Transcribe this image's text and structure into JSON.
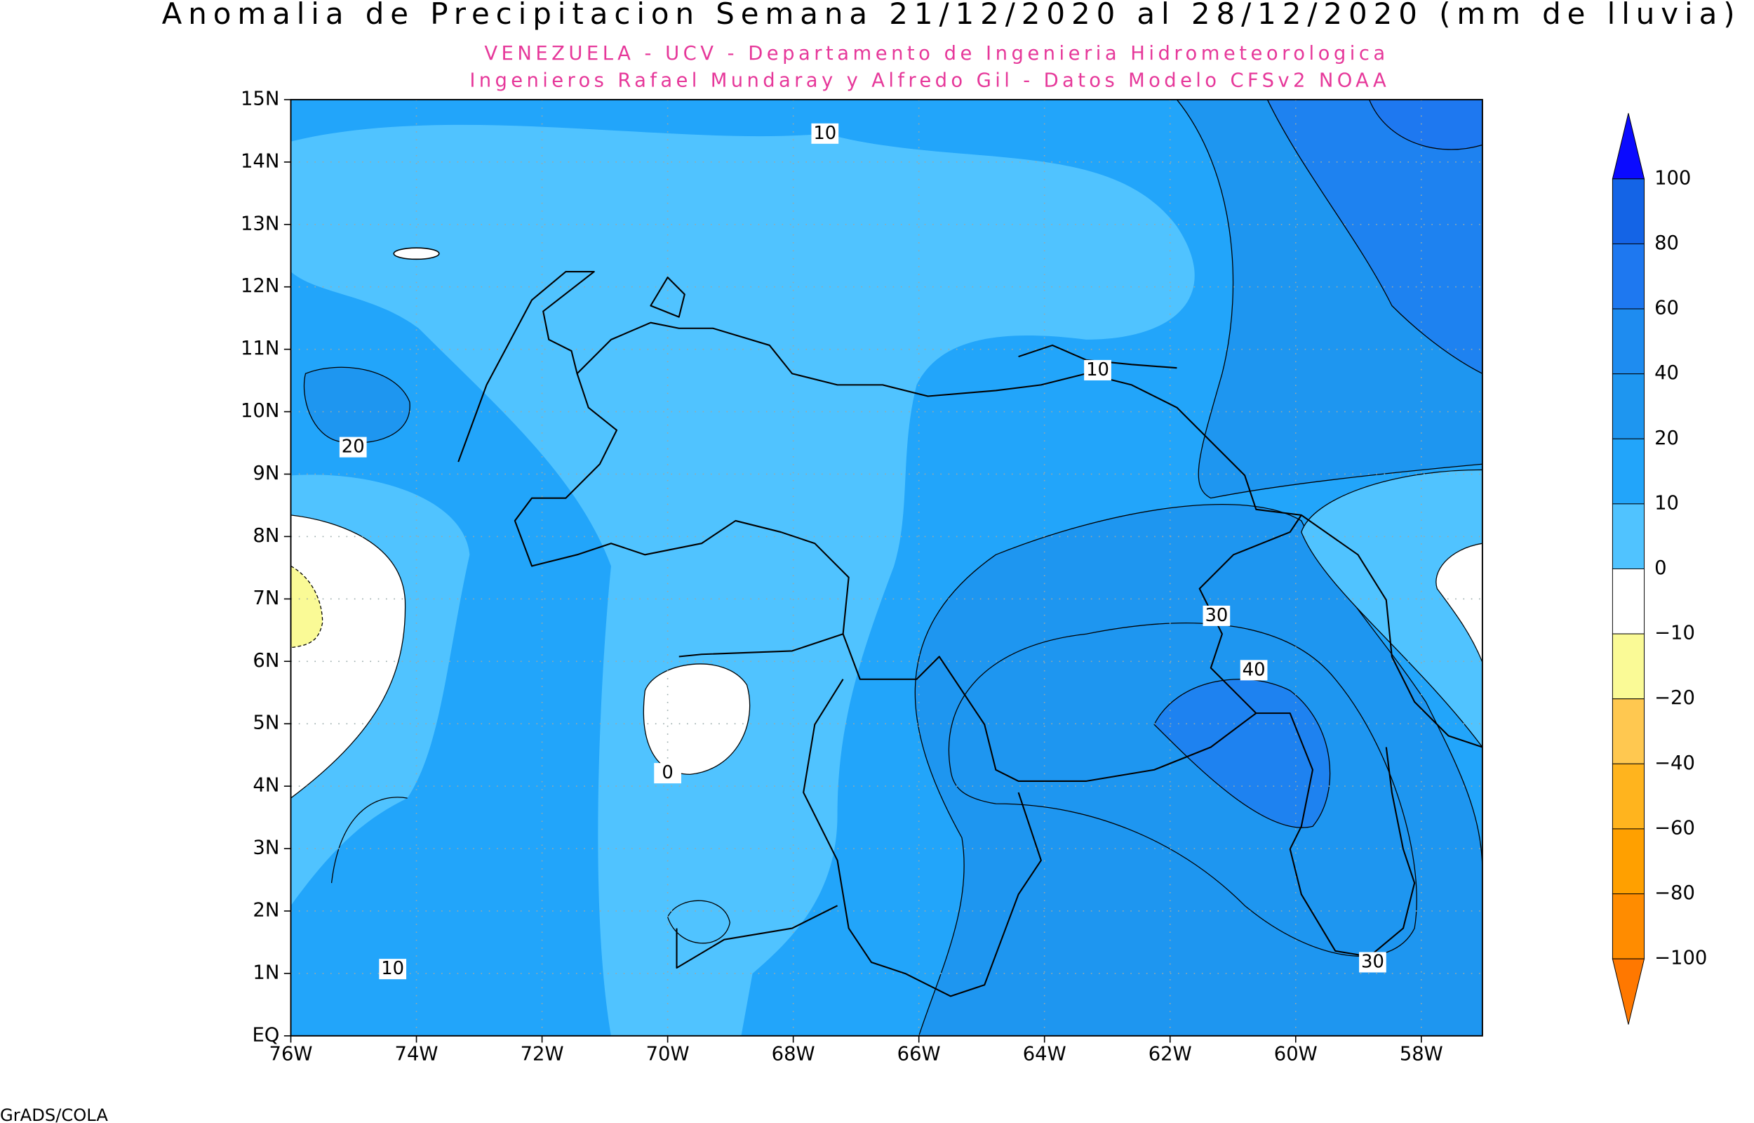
{
  "title": "Anomalia de Precipitacion Semana 21/12/2020 al 28/12/2020 (mm de lluvia)",
  "subtitle": [
    "VENEZUELA - UCV - Departamento de Ingenieria Hidrometeorologica",
    "Ingenieros Rafael Mundaray y Alfredo Gil - Datos Modelo CFSv2 NOAA"
  ],
  "map": {
    "lat_ticks": [
      "EQ",
      "1N",
      "2N",
      "3N",
      "4N",
      "5N",
      "6N",
      "7N",
      "8N",
      "9N",
      "10N",
      "11N",
      "12N",
      "13N",
      "14N",
      "15N"
    ],
    "lon_ticks": [
      "76W",
      "74W",
      "72W",
      "70W",
      "68W",
      "66W",
      "64W",
      "62W",
      "60W",
      "58W"
    ],
    "contour_labels": [
      "10",
      "10",
      "20",
      "30",
      "40",
      "0",
      "10",
      "30"
    ]
  },
  "colorbar": {
    "labels": [
      "100",
      "80",
      "60",
      "40",
      "20",
      "10",
      "0",
      "−10",
      "−20",
      "−40",
      "−60",
      "−80",
      "−100"
    ],
    "colors": [
      "#0a0aff",
      "#1464e6",
      "#1e78f0",
      "#1e8cf0",
      "#1e96f0",
      "#22a5fa",
      "#50c3ff",
      "#ffffff",
      "#fafa96",
      "#ffc850",
      "#ffb41e",
      "#ffa000",
      "#ff8c00",
      "#ff7800"
    ]
  },
  "footer": "GrADS/COLA"
}
